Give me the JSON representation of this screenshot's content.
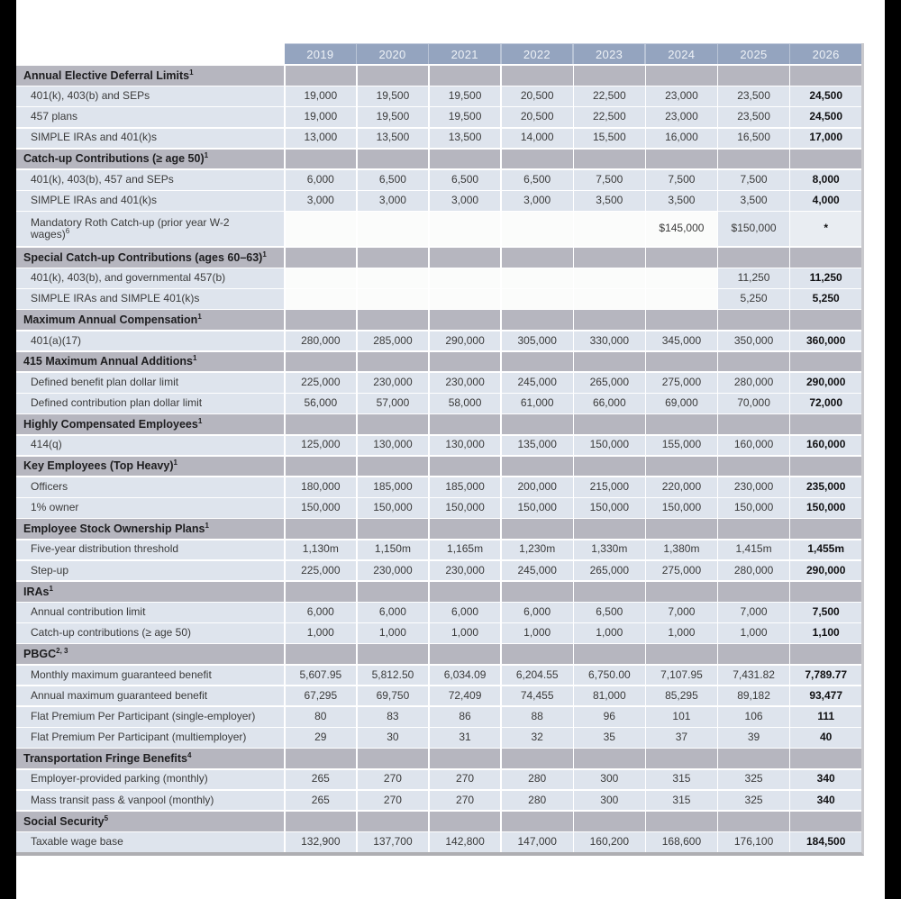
{
  "page": {
    "background": "#ffffff",
    "frame_color": "#000000"
  },
  "colors": {
    "year_header_bg": "#94a4bf",
    "year_header_text": "#edf1f6",
    "section_bg": "#b6b6bf",
    "section_text": "#1d1d1f",
    "row_bg": "#dee4ed",
    "row_text": "#3a3a3a",
    "blank_cell_bg": "#fbfcfb",
    "light_cell_bg": "#e9edf2",
    "shadow_border": "#aeaeb2"
  },
  "table": {
    "years": [
      "2019",
      "2020",
      "2021",
      "2022",
      "2023",
      "2024",
      "2025",
      "2026"
    ],
    "rows": [
      {
        "type": "section",
        "label": "Annual Elective Deferral Limits",
        "sup": "1"
      },
      {
        "type": "data",
        "label": "401(k), 403(b) and SEPs",
        "values": [
          "19,000",
          "19,500",
          "19,500",
          "20,500",
          "22,500",
          "23,000",
          "23,500",
          "24,500"
        ]
      },
      {
        "type": "data",
        "label": "457 plans",
        "values": [
          "19,000",
          "19,500",
          "19,500",
          "20,500",
          "22,500",
          "23,000",
          "23,500",
          "24,500"
        ]
      },
      {
        "type": "data",
        "label": "SIMPLE IRAs and 401(k)s",
        "values": [
          "13,000",
          "13,500",
          "13,500",
          "14,000",
          "15,500",
          "16,000",
          "16,500",
          "17,000"
        ]
      },
      {
        "type": "section",
        "label": "Catch-up Contributions (≥ age 50)",
        "sup": "1"
      },
      {
        "type": "data",
        "label": "401(k), 403(b), 457 and SEPs",
        "values": [
          "6,000",
          "6,500",
          "6,500",
          "6,500",
          "7,500",
          "7,500",
          "7,500",
          "8,000"
        ]
      },
      {
        "type": "data",
        "label": "SIMPLE IRAs and 401(k)s",
        "values": [
          "3,000",
          "3,000",
          "3,000",
          "3,000",
          "3,500",
          "3,500",
          "3,500",
          "4,000"
        ]
      },
      {
        "type": "data",
        "label": "Mandatory Roth Catch-up (prior year W-2",
        "label2": "wages)",
        "sup": "6",
        "tall": true,
        "values": [
          "",
          "",
          "",
          "",
          "",
          "$145,000",
          "$150,000",
          "*"
        ],
        "cell_bg": [
          "blank",
          "blank",
          "blank",
          "blank",
          "blank",
          "blank",
          "normal",
          "light"
        ]
      },
      {
        "type": "section",
        "label": "Special Catch-up Contributions (ages 60–63)",
        "sup": "1"
      },
      {
        "type": "data",
        "label": "401(k), 403(b), and governmental 457(b)",
        "values": [
          "",
          "",
          "",
          "",
          "",
          "",
          "11,250",
          "11,250"
        ]
      },
      {
        "type": "data",
        "label": "SIMPLE IRAs and SIMPLE 401(k)s",
        "values": [
          "",
          "",
          "",
          "",
          "",
          "",
          "5,250",
          "5,250"
        ]
      },
      {
        "type": "section",
        "label": "Maximum Annual Compensation",
        "sup": "1"
      },
      {
        "type": "data",
        "label": "401(a)(17)",
        "values": [
          "280,000",
          "285,000",
          "290,000",
          "305,000",
          "330,000",
          "345,000",
          "350,000",
          "360,000"
        ]
      },
      {
        "type": "section",
        "label": "415 Maximum Annual Additions",
        "sup": "1"
      },
      {
        "type": "data",
        "label": "Defined benefit plan dollar limit",
        "values": [
          "225,000",
          "230,000",
          "230,000",
          "245,000",
          "265,000",
          "275,000",
          "280,000",
          "290,000"
        ]
      },
      {
        "type": "data",
        "label": "Defined contribution plan dollar limit",
        "values": [
          "56,000",
          "57,000",
          "58,000",
          "61,000",
          "66,000",
          "69,000",
          "70,000",
          "72,000"
        ]
      },
      {
        "type": "section",
        "label": "Highly Compensated Employees",
        "sup": "1"
      },
      {
        "type": "data",
        "label": "414(q)",
        "values": [
          "125,000",
          "130,000",
          "130,000",
          "135,000",
          "150,000",
          "155,000",
          "160,000",
          "160,000"
        ]
      },
      {
        "type": "section",
        "label": "Key Employees (Top Heavy)",
        "sup": "1"
      },
      {
        "type": "data",
        "label": "Officers",
        "values": [
          "180,000",
          "185,000",
          "185,000",
          "200,000",
          "215,000",
          "220,000",
          "230,000",
          "235,000"
        ]
      },
      {
        "type": "data",
        "label": "1% owner",
        "values": [
          "150,000",
          "150,000",
          "150,000",
          "150,000",
          "150,000",
          "150,000",
          "150,000",
          "150,000"
        ]
      },
      {
        "type": "section",
        "label": "Employee Stock Ownership Plans",
        "sup": "1"
      },
      {
        "type": "data",
        "label": "Five-year distribution threshold",
        "values": [
          "1,130m",
          "1,150m",
          "1,165m",
          "1,230m",
          "1,330m",
          "1,380m",
          "1,415m",
          "1,455m"
        ]
      },
      {
        "type": "data",
        "label": "Step-up",
        "values": [
          "225,000",
          "230,000",
          "230,000",
          "245,000",
          "265,000",
          "275,000",
          "280,000",
          "290,000"
        ]
      },
      {
        "type": "section",
        "label": "IRAs",
        "sup": "1"
      },
      {
        "type": "data",
        "label": "Annual contribution limit",
        "values": [
          "6,000",
          "6,000",
          "6,000",
          "6,000",
          "6,500",
          "7,000",
          "7,000",
          "7,500"
        ]
      },
      {
        "type": "data",
        "label": "Catch-up contributions (≥ age 50)",
        "values": [
          "1,000",
          "1,000",
          "1,000",
          "1,000",
          "1,000",
          "1,000",
          "1,000",
          "1,100"
        ]
      },
      {
        "type": "section",
        "label": "PBGC",
        "sup": "2, 3"
      },
      {
        "type": "data",
        "label": "Monthly maximum guaranteed benefit",
        "values": [
          "5,607.95",
          "5,812.50",
          "6,034.09",
          "6,204.55",
          "6,750.00",
          "7,107.95",
          "7,431.82",
          "7,789.77"
        ]
      },
      {
        "type": "data",
        "label": "Annual maximum guaranteed benefit",
        "values": [
          "67,295",
          "69,750",
          "72,409",
          "74,455",
          "81,000",
          "85,295",
          "89,182",
          "93,477"
        ]
      },
      {
        "type": "data",
        "label": "Flat Premium Per Participant (single-employer)",
        "values": [
          "80",
          "83",
          "86",
          "88",
          "96",
          "101",
          "106",
          "111"
        ]
      },
      {
        "type": "data",
        "label": "Flat Premium Per Participant (multiemployer)",
        "values": [
          "29",
          "30",
          "31",
          "32",
          "35",
          "37",
          "39",
          "40"
        ]
      },
      {
        "type": "section",
        "label": "Transportation Fringe Benefits",
        "sup": "4"
      },
      {
        "type": "data",
        "label": "Employer-provided parking (monthly)",
        "values": [
          "265",
          "270",
          "270",
          "280",
          "300",
          "315",
          "325",
          "340"
        ]
      },
      {
        "type": "data",
        "label": "Mass transit pass & vanpool (monthly)",
        "values": [
          "265",
          "270",
          "270",
          "280",
          "300",
          "315",
          "325",
          "340"
        ]
      },
      {
        "type": "section",
        "label": "Social Security",
        "sup": "5"
      },
      {
        "type": "data",
        "label": "Taxable wage base",
        "values": [
          "132,900",
          "137,700",
          "142,800",
          "147,000",
          "160,200",
          "168,600",
          "176,100",
          "184,500"
        ]
      }
    ]
  }
}
